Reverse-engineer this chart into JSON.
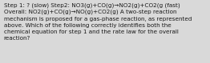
{
  "background_color": "#d9d9d9",
  "text_color": "#1a1a1a",
  "lines": [
    "Step 1: ? (slow) Step2: NO3(g)+CO(g)→NO2(g)+CO2(g (fast)",
    "Overall: NO2(g)+CO(g)→NO(g)+CO2(g) A two-step reaction",
    "mechanism is proposed for a gas-phase reaction, as represented",
    "above. Which of the following correctly identifies both the",
    "chemical equation for step 1 and the rate law for the overall",
    "reaction?"
  ],
  "fontsize": 5.2,
  "figsize": [
    2.62,
    0.79
  ],
  "dpi": 100,
  "linespacing": 1.45
}
